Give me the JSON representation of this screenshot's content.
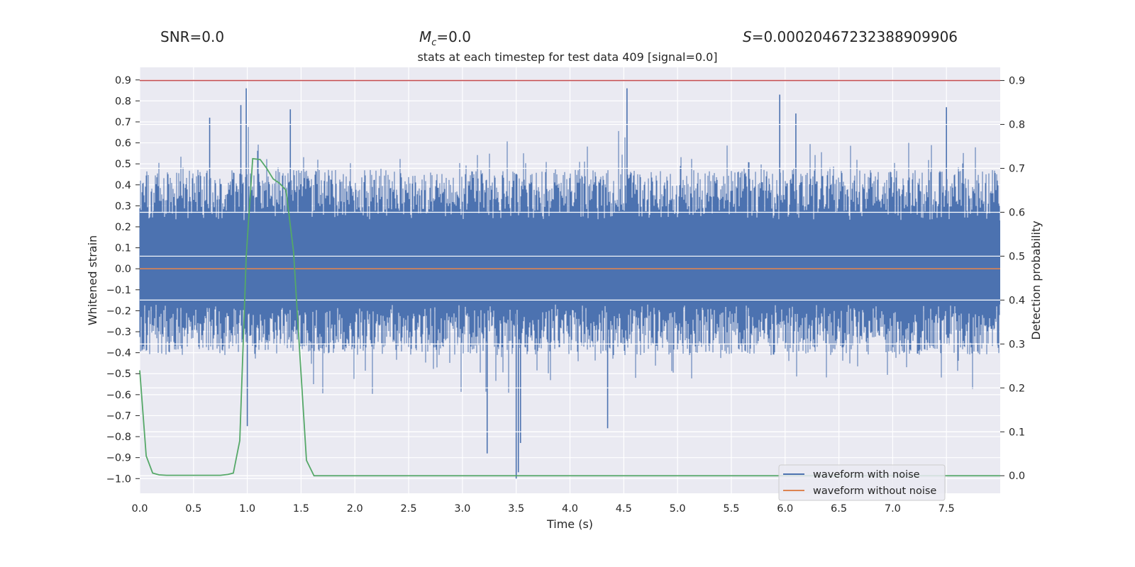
{
  "header": {
    "snr": "SNR=0.0",
    "mc_symbol": "M",
    "mc_sub": "c",
    "mc_value": "=0.0",
    "s_symbol": "S",
    "s_value": "=0.00020467232388909906"
  },
  "chart_data": {
    "type": "line",
    "title": "stats at each timestep for test data 409 [signal=0.0]",
    "xlabel": "Time (s)",
    "ylabel": "Whitened strain",
    "ylabel_right": "Detection probability",
    "xlim": [
      0.0,
      8.0
    ],
    "ylim": [
      -1.07,
      0.96
    ],
    "ylim_right": [
      -0.04,
      0.93
    ],
    "x_ticks": [
      "0.0",
      "0.5",
      "1.0",
      "1.5",
      "2.0",
      "2.5",
      "3.0",
      "3.5",
      "4.0",
      "4.5",
      "5.0",
      "5.5",
      "6.0",
      "6.5",
      "7.0",
      "7.5"
    ],
    "y_ticks": [
      "0.9",
      "0.8",
      "0.7",
      "0.6",
      "0.5",
      "0.4",
      "0.3",
      "0.2",
      "0.1",
      "0.0",
      "−0.1",
      "−0.2",
      "−0.3",
      "−0.4",
      "−0.5",
      "−0.6",
      "−0.7",
      "−0.8",
      "−0.9",
      "−1.0"
    ],
    "y_right_ticks": [
      "0.9",
      "0.8",
      "0.7",
      "0.6",
      "0.5",
      "0.4",
      "0.3",
      "0.2",
      "0.1",
      "0.0"
    ],
    "legend": {
      "placement": "bottom-right",
      "entries": [
        "waveform with noise",
        "waveform without noise"
      ]
    },
    "colors": {
      "noise": "#4c72b0",
      "clean": "#dd8452",
      "probability": "#55a868",
      "threshold": "#c44e52",
      "background": "#eaeaf2",
      "grid": "#ffffff"
    },
    "series": [
      {
        "name": "waveform with noise",
        "axis": "left",
        "envelope_inner": [
          -0.17,
          0.23
        ],
        "envelope_typical": [
          -0.38,
          0.44
        ],
        "spikes": [
          {
            "x": 0.99,
            "y": 0.86
          },
          {
            "x": 0.94,
            "y": 0.78
          },
          {
            "x": 1.4,
            "y": 0.76
          },
          {
            "x": 4.53,
            "y": 0.86
          },
          {
            "x": 5.95,
            "y": 0.83
          },
          {
            "x": 7.5,
            "y": 0.77
          },
          {
            "x": 6.1,
            "y": 0.74
          },
          {
            "x": 0.65,
            "y": 0.72
          },
          {
            "x": 3.5,
            "y": -1.0
          },
          {
            "x": 3.52,
            "y": -0.97
          },
          {
            "x": 3.54,
            "y": -0.83
          },
          {
            "x": 3.23,
            "y": -0.88
          },
          {
            "x": 1.0,
            "y": -0.75
          },
          {
            "x": 4.35,
            "y": -0.76
          }
        ]
      },
      {
        "name": "waveform without noise",
        "axis": "left",
        "x": [
          0.0,
          8.0
        ],
        "y": [
          0.0,
          0.0
        ]
      },
      {
        "name": "detection probability",
        "axis": "right",
        "x": [
          0.0,
          0.06,
          0.12,
          0.18,
          0.25,
          0.5,
          0.75,
          0.82,
          0.87,
          0.93,
          0.99,
          1.05,
          1.12,
          1.18,
          1.24,
          1.3,
          1.36,
          1.43,
          1.49,
          1.55,
          1.62,
          1.68,
          8.0
        ],
        "y": [
          0.24,
          0.045,
          0.006,
          0.002,
          0.001,
          0.001,
          0.001,
          0.003,
          0.006,
          0.08,
          0.5,
          0.722,
          0.72,
          0.7,
          0.676,
          0.666,
          0.65,
          0.51,
          0.27,
          0.035,
          0.0,
          0.0,
          0.0
        ]
      },
      {
        "name": "threshold",
        "axis": "right",
        "x": [
          0.0,
          8.0
        ],
        "y": [
          0.9,
          0.9
        ]
      }
    ]
  }
}
